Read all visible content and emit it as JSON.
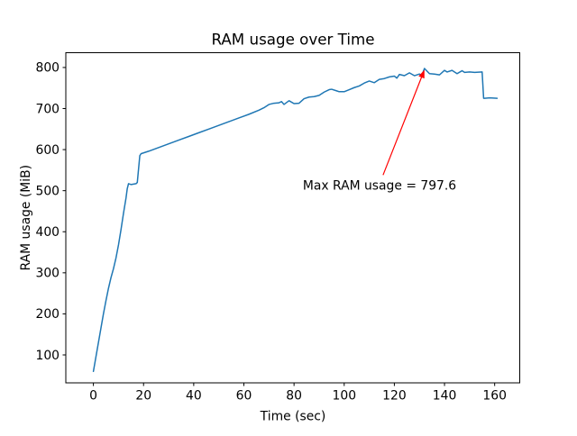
{
  "chart_data": {
    "type": "line",
    "title": "RAM usage over Time",
    "xlabel": "Time (sec)",
    "ylabel": "RAM usage (MiB)",
    "xlim": [
      -11,
      170
    ],
    "ylim": [
      32,
      836
    ],
    "x_ticks": [
      0,
      20,
      40,
      60,
      80,
      100,
      120,
      140,
      160
    ],
    "y_ticks": [
      100,
      200,
      300,
      400,
      500,
      600,
      700,
      800
    ],
    "grid": false,
    "legend": null,
    "line_color": "#1f77b4",
    "line_width": 1.5,
    "axis_color": "#000000",
    "series": [
      {
        "name": "RAM usage",
        "x": [
          0,
          1,
          2,
          3,
          4,
          5,
          6,
          7,
          8,
          9,
          10,
          11,
          12,
          13,
          13.5,
          14,
          15,
          16,
          17,
          17.5,
          18.5,
          19,
          22,
          26,
          30,
          34,
          38,
          42,
          46,
          50,
          54,
          58,
          62,
          66,
          68,
          70,
          72,
          74,
          75,
          76,
          78,
          80,
          82,
          84,
          86,
          88,
          90,
          92,
          94,
          95,
          97,
          98,
          100,
          102,
          104,
          106,
          108,
          110,
          112,
          114,
          116,
          118,
          120,
          121,
          122,
          124,
          126,
          128,
          130,
          131,
          132,
          134,
          136,
          138,
          140,
          141,
          143,
          145,
          147,
          148,
          150,
          152,
          155,
          155.6,
          156,
          158,
          161
        ],
        "y": [
          60,
          95,
          130,
          165,
          200,
          232,
          262,
          288,
          310,
          336,
          368,
          405,
          445,
          482,
          505,
          517,
          515,
          516,
          517,
          520,
          585,
          590,
          596,
          605,
          614,
          623,
          632,
          641,
          650,
          659,
          668,
          677,
          686,
          696,
          702,
          710,
          713,
          714,
          717,
          710,
          719,
          712,
          713,
          724,
          728,
          729,
          732,
          740,
          746,
          747,
          743,
          741,
          741,
          746,
          751,
          755,
          762,
          767,
          763,
          771,
          773,
          777,
          779,
          774,
          783,
          780,
          787,
          780,
          784,
          781,
          797.6,
          785,
          784,
          782,
          793,
          789,
          793,
          785,
          792,
          788,
          789,
          788,
          789,
          725,
          725,
          726,
          725
        ]
      }
    ],
    "annotation": {
      "text": "Max RAM usage = 797.6",
      "color": "#ff0000",
      "point": {
        "x": 132,
        "y": 797.6
      },
      "text_anchor": {
        "x": 114,
        "y": 512
      },
      "arrow_tail": {
        "x": 115.5,
        "y": 538
      }
    }
  }
}
